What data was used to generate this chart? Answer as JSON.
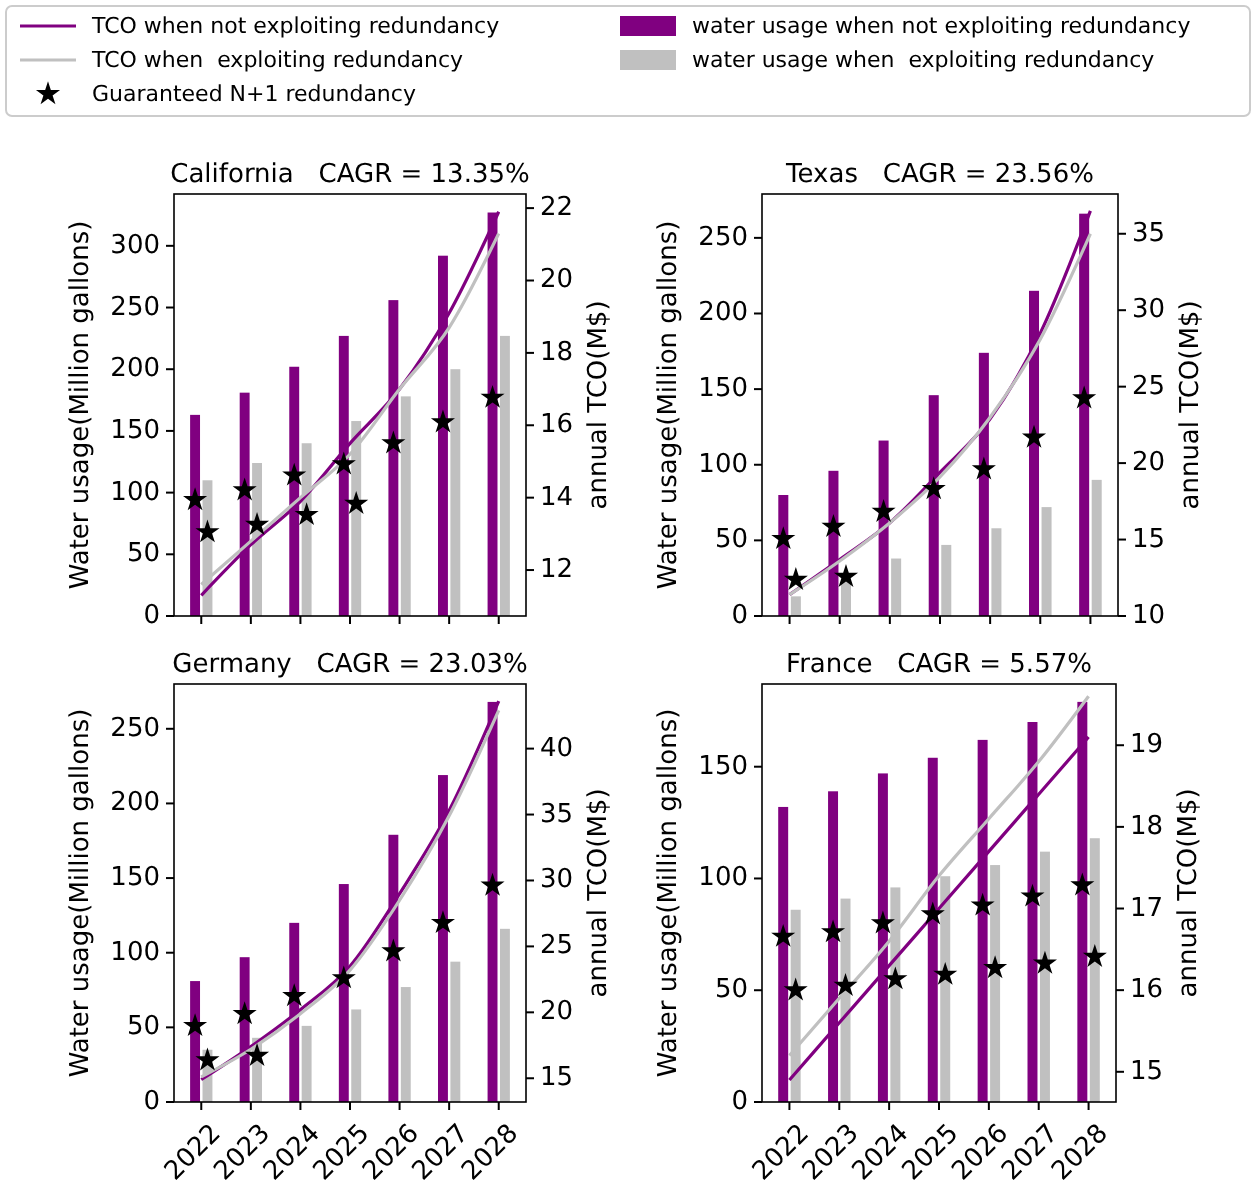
{
  "chart_data": [
    {
      "type": "bar",
      "title": "California   CAGR = 13.35%",
      "ylabel": "Water usage(Million gallons)",
      "y2label": "annual TCO(M$)",
      "legend": "top",
      "tick_labels": "y",
      "categories": [
        "2022",
        "2023",
        "2024",
        "2025",
        "2026",
        "2027",
        "2028"
      ],
      "ylim": [
        0,
        342
      ],
      "yticks": [
        0,
        50,
        100,
        150,
        200,
        250,
        300
      ],
      "y2lim": [
        10.73,
        22.39
      ],
      "y2ticks": [
        12,
        14,
        16,
        18,
        20,
        22
      ],
      "series": [
        {
          "type": "line",
          "axis": "y2",
          "name": "TCO when not exploiting redundancy",
          "color": "#800080",
          "values": [
            11.3,
            12.7,
            13.9,
            15.5,
            17.0,
            19.1,
            21.9
          ]
        },
        {
          "type": "line",
          "axis": "y2",
          "name": "TCO when  exploiting redundancy",
          "color": "#c0c0c0",
          "values": [
            11.6,
            12.8,
            14.0,
            15.2,
            17.0,
            18.7,
            21.3
          ]
        },
        {
          "type": "scatter",
          "marker": "star",
          "name": "Guaranteed N+1 redundancy",
          "color": "#000000",
          "values": [
            94,
            102,
            114,
            123,
            140,
            157,
            177
          ]
        },
        {
          "type": "scatter",
          "marker": "star",
          "color": "#000000",
          "values": [
            68,
            74,
            82,
            91,
            null,
            null,
            null
          ]
        },
        {
          "name": "water usage when not exploiting redundancy",
          "color": "#800080",
          "values": [
            163,
            181,
            202,
            227,
            256,
            292,
            327
          ]
        },
        {
          "name": "water usage when  exploiting redundancy",
          "color": "#c0c0c0",
          "values": [
            110,
            124,
            140,
            158,
            178,
            200,
            227
          ]
        }
      ]
    },
    {
      "type": "bar",
      "title": "Texas   CAGR = 23.56%",
      "ylabel": "Water usage(Million gallons)",
      "y2label": "annual TCO(M$)",
      "tick_labels": "y",
      "categories": [
        "2022",
        "2023",
        "2024",
        "2025",
        "2026",
        "2027",
        "2028"
      ],
      "ylim": [
        0,
        279
      ],
      "yticks": [
        0,
        50,
        100,
        150,
        200,
        250
      ],
      "y2lim": [
        10,
        37.6
      ],
      "y2ticks": [
        10,
        15,
        20,
        25,
        30,
        35
      ],
      "series": [
        {
          "type": "line",
          "axis": "y2",
          "color": "#800080",
          "values": [
            11.4,
            13.7,
            16.1,
            19.4,
            22.9,
            28.5,
            36.5
          ]
        },
        {
          "type": "line",
          "axis": "y2",
          "color": "#c0c0c0",
          "values": [
            11.4,
            13.6,
            16.1,
            19.1,
            23.0,
            28.1,
            35.0
          ]
        },
        {
          "type": "scatter",
          "marker": "star",
          "color": "#000000",
          "values": [
            51,
            59,
            69,
            84,
            97,
            118,
            144
          ]
        },
        {
          "type": "scatter",
          "marker": "star",
          "color": "#000000",
          "values": [
            24,
            26,
            null,
            null,
            null,
            null,
            null
          ]
        },
        {
          "color": "#800080",
          "values": [
            80,
            96,
            116,
            146,
            174,
            215,
            266
          ]
        },
        {
          "color": "#c0c0c0",
          "values": [
            13,
            28,
            38,
            47,
            58,
            72,
            90
          ]
        }
      ]
    },
    {
      "type": "bar",
      "title": "Germany   CAGR = 23.03%",
      "ylabel": "Water usage(Million gallons)",
      "y2label": "annual TCO(M$)",
      "categories": [
        "2022",
        "2023",
        "2024",
        "2025",
        "2026",
        "2027",
        "2028"
      ],
      "ylim": [
        0,
        280
      ],
      "yticks": [
        0,
        50,
        100,
        150,
        200,
        250
      ],
      "y2lim": [
        13.2,
        44.9
      ],
      "y2ticks": [
        15,
        20,
        25,
        30,
        35,
        40
      ],
      "series": [
        {
          "type": "line",
          "axis": "y2",
          "color": "#800080",
          "values": [
            14.9,
            17.4,
            20.2,
            23.5,
            29.0,
            35.3,
            43.6
          ]
        },
        {
          "type": "line",
          "axis": "y2",
          "color": "#c0c0c0",
          "values": [
            15.1,
            17.2,
            19.9,
            23.2,
            28.5,
            34.9,
            42.9
          ]
        },
        {
          "type": "scatter",
          "marker": "star",
          "color": "#000000",
          "values": [
            51,
            59,
            71,
            83,
            101,
            120,
            145
          ]
        },
        {
          "type": "scatter",
          "marker": "star",
          "color": "#000000",
          "values": [
            28,
            31,
            null,
            null,
            null,
            null,
            null
          ]
        },
        {
          "color": "#800080",
          "values": [
            81,
            97,
            120,
            146,
            179,
            219,
            268
          ]
        },
        {
          "color": "#c0c0c0",
          "values": [
            35,
            43,
            51,
            62,
            77,
            94,
            116
          ]
        }
      ]
    },
    {
      "type": "bar",
      "title": "France   CAGR = 5.57%",
      "ylabel": "Water usage(Million gallons)",
      "y2label": "annual TCO(M$)",
      "categories": [
        "2022",
        "2023",
        "2024",
        "2025",
        "2026",
        "2027",
        "2028"
      ],
      "ylim": [
        0,
        187
      ],
      "yticks": [
        0,
        50,
        100,
        150
      ],
      "y2lim": [
        14.63,
        19.75
      ],
      "y2ticks": [
        15,
        16,
        17,
        18,
        19
      ],
      "series": [
        {
          "type": "line",
          "axis": "y2",
          "color": "#800080",
          "values": [
            14.9,
            15.6,
            16.3,
            17.0,
            17.7,
            18.4,
            19.1
          ]
        },
        {
          "type": "line",
          "axis": "y2",
          "color": "#c0c0c0",
          "values": [
            15.2,
            15.9,
            16.6,
            17.4,
            18.1,
            18.8,
            19.6
          ]
        },
        {
          "type": "scatter",
          "marker": "star",
          "color": "#000000",
          "values": [
            74,
            76,
            80,
            84,
            88,
            92,
            97
          ]
        },
        {
          "type": "scatter",
          "marker": "star",
          "color": "#000000",
          "values": [
            50,
            52,
            55,
            57,
            60,
            62,
            65
          ]
        },
        {
          "color": "#800080",
          "values": [
            132,
            139,
            147,
            154,
            162,
            170,
            179
          ]
        },
        {
          "color": "#c0c0c0",
          "values": [
            86,
            91,
            96,
            101,
            106,
            112,
            118
          ]
        }
      ]
    }
  ]
}
